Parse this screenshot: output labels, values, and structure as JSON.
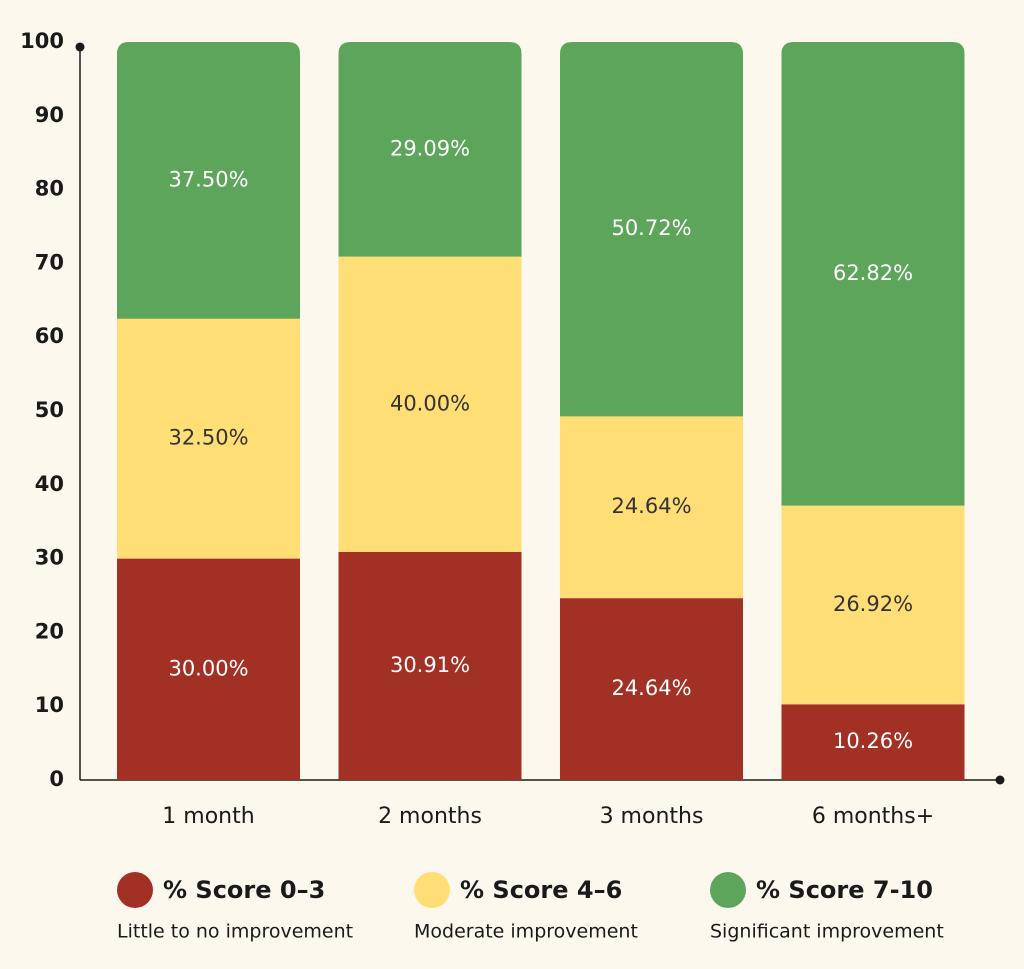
{
  "chart_data": {
    "type": "stacked_bar",
    "categories": [
      "1 month",
      "2 months",
      "3 months",
      "6 months+"
    ],
    "series": [
      {
        "name": "% Score 0–3",
        "description": "Little to no improvement",
        "color": "#a33024",
        "label_color": "#ffffff",
        "values": [
          30.0,
          30.91,
          24.64,
          10.26
        ],
        "value_labels": [
          "30.00%",
          "30.91%",
          "24.64%",
          "10.26%"
        ]
      },
      {
        "name": "% Score 4–6",
        "description": "Moderate improvement",
        "color": "#fede75",
        "label_color": "#333333",
        "values": [
          32.5,
          40.0,
          24.64,
          26.92
        ],
        "value_labels": [
          "32.50%",
          "40.00%",
          "24.64%",
          "26.92%"
        ]
      },
      {
        "name": "% Score 7-10",
        "description": "Significant improvement",
        "color": "#5da55a",
        "label_color": "#ffffff",
        "values": [
          37.5,
          29.09,
          50.72,
          62.82
        ],
        "value_labels": [
          "37.50%",
          "29.09%",
          "50.72%",
          "62.82%"
        ]
      }
    ],
    "ylim": [
      0,
      100
    ],
    "yticks": [
      0,
      10,
      20,
      30,
      40,
      50,
      60,
      70,
      80,
      90,
      100
    ],
    "grid": false
  }
}
